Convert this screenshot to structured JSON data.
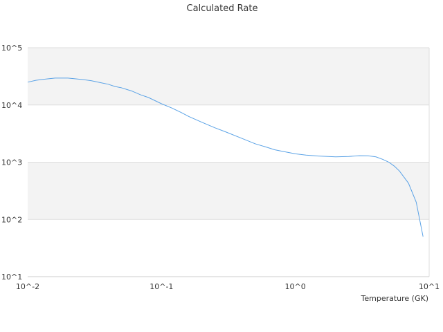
{
  "chart_data": {
    "type": "line",
    "title": "Calculated Rate",
    "xlabel": "Temperature (GK)",
    "ylabel": "",
    "x_scale": "log",
    "y_scale": "log",
    "xlim": [
      0.01,
      10
    ],
    "ylim": [
      10,
      100000
    ],
    "x_ticks": [
      {
        "value": 0.01,
        "label": "10^-2"
      },
      {
        "value": 0.1,
        "label": "10^-1"
      },
      {
        "value": 1,
        "label": "10^0"
      },
      {
        "value": 10,
        "label": "10^1"
      }
    ],
    "y_ticks": [
      {
        "value": 10,
        "label": "10^1"
      },
      {
        "value": 100,
        "label": "10^2"
      },
      {
        "value": 1000,
        "label": "10^3"
      },
      {
        "value": 10000,
        "label": "10^4"
      },
      {
        "value": 100000,
        "label": "10^5"
      }
    ],
    "grid": "horizontal",
    "band_colors": [
      "#f3f3f3",
      "#ffffff"
    ],
    "line_color": "#5aa2e6",
    "series": [
      {
        "name": "",
        "x": [
          0.01,
          0.0115,
          0.013,
          0.016,
          0.02,
          0.025,
          0.03,
          0.035,
          0.04,
          0.045,
          0.05,
          0.06,
          0.07,
          0.08,
          0.1,
          0.12,
          0.14,
          0.16,
          0.2,
          0.25,
          0.3,
          0.4,
          0.5,
          0.6,
          0.7,
          0.8,
          1.0,
          1.2,
          1.5,
          2.0,
          2.5,
          3.0,
          3.5,
          4.0,
          4.5,
          5.0,
          5.5,
          6.0,
          7.0,
          8.0,
          9.0
        ],
        "y": [
          25000,
          27000,
          28000,
          29500,
          29500,
          28000,
          26500,
          24500,
          23000,
          21000,
          20000,
          17500,
          15000,
          13500,
          10500,
          8800,
          7400,
          6300,
          5000,
          4000,
          3400,
          2600,
          2100,
          1850,
          1650,
          1550,
          1400,
          1330,
          1280,
          1240,
          1260,
          1300,
          1290,
          1240,
          1120,
          1000,
          850,
          700,
          430,
          200,
          50
        ]
      }
    ]
  }
}
